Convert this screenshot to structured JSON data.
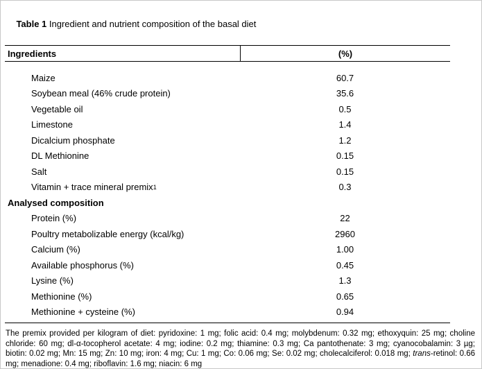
{
  "caption": {
    "label": "Table 1",
    "text": " Ingredient and nutrient composition of the basal diet"
  },
  "header": {
    "col1": "Ingredients",
    "col2": "(%)"
  },
  "rows": [
    {
      "label": "Maize",
      "value": "60.7"
    },
    {
      "label": "Soybean meal (46% crude protein)",
      "value": "35.6"
    },
    {
      "label": "Vegetable oil",
      "value": "0.5"
    },
    {
      "label": "Limestone",
      "value": "1.4"
    },
    {
      "label": "Dicalcium phosphate",
      "value": "1.2"
    },
    {
      "label": "DL Methionine",
      "value": "0.15"
    },
    {
      "label": "Salt",
      "value": "0.15"
    },
    {
      "label": "Vitamin + trace mineral premix",
      "sup": "1",
      "value": "0.3"
    },
    {
      "label": "Analysed composition",
      "section": true,
      "value": ""
    },
    {
      "label": "Protein (%)",
      "value": "22"
    },
    {
      "label": "Poultry metabolizable energy (kcal/kg)",
      "value": "2960"
    },
    {
      "label": "Calcium (%)",
      "value": "1.00"
    },
    {
      "label": "Available phosphorus (%)",
      "value": "0.45"
    },
    {
      "label": "Lysine (%)",
      "value": "1.3"
    },
    {
      "label": "Methionine (%)",
      "value": "0.65"
    },
    {
      "label": "Methionine + cysteine (%)",
      "value": "0.94"
    }
  ],
  "footnote": {
    "part1": "The premix provided per kilogram of diet: pyridoxine: 1 mg; folic acid: 0.4 mg; molybdenum: 0.32 mg; ethoxyquin: 25 mg; choline chloride: 60 mg; dl-α-tocopherol acetate: 4 mg; iodine: 0.2 mg; thiamine: 0.3 mg; Ca pantothenate: 3 mg; cyanocobalamin: 3 µg; biotin: 0.02 mg; Mn: 15 mg; Zn: 10 mg; iron: 4 mg; Cu: 1 mg; Co: 0.06 mg; Se: 0.02 mg; cholecalciferol: 0.018 mg; ",
    "italic": "trans",
    "part2": "-retinol: 0.66 mg; menadione: 0.4 mg; riboflavin: 1.6 mg; niacin: 6 mg"
  }
}
